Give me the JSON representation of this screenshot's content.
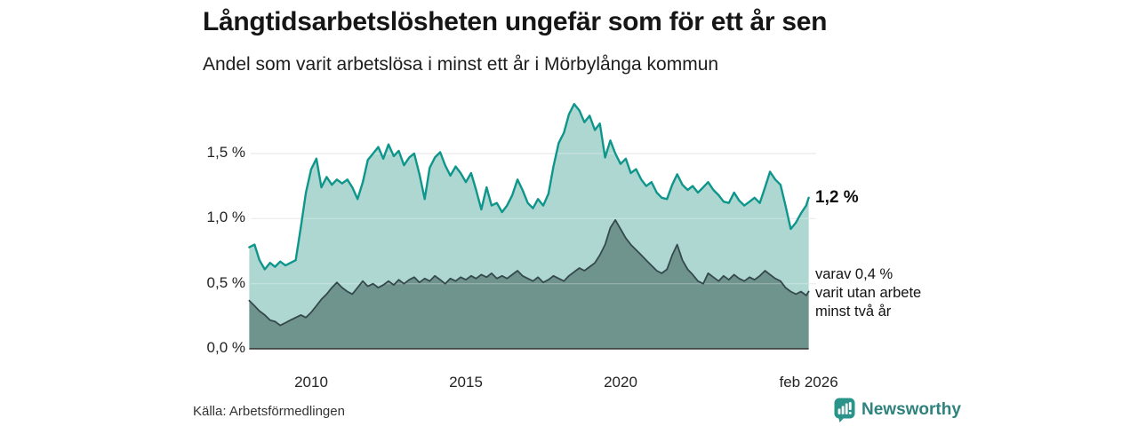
{
  "header": {
    "title": "Långtidsarbetslösheten ungefär som för ett år sen",
    "subtitle": "Andel som varit arbetslösa i minst ett år i Mörbylånga kommun"
  },
  "annotations": {
    "latest_total": "1,2 %",
    "lower_lines": [
      "varav 0,4 %",
      "varit utan arbete",
      "minst två år"
    ]
  },
  "footer": {
    "source": "Källa: Arbetsförmedlingen",
    "brand": "Newsworthy"
  },
  "colors": {
    "accent_teal": "#0f968c",
    "fill_teal": "#aed7d1",
    "dark_line": "#34494c",
    "dark_fill": "#6f938d",
    "grid": "#e2e4e8",
    "axis": "#303030",
    "brand_text": "#2f827e",
    "brand_icon": "#2a948b"
  },
  "chart_data": {
    "type": "area",
    "title": "Långtidsarbetslösheten ungefär som för ett år sen",
    "subtitle": "Andel som varit arbetslösa i minst ett år i Mörbylånga kommun",
    "xlabel": "",
    "ylabel": "",
    "x_unit": "decimal_year",
    "xlim": [
      2008,
      2026.08
    ],
    "ylim": [
      0,
      1.96
    ],
    "grid": true,
    "legend_position": "none",
    "y_ticks": [
      {
        "value": 0,
        "label": "0,0 %"
      },
      {
        "value": 0.5,
        "label": "0,5 %"
      },
      {
        "value": 1,
        "label": "1,0 %"
      },
      {
        "value": 1.5,
        "label": "1,5 %"
      }
    ],
    "x_ticks": [
      {
        "value": 2010,
        "label": "2010"
      },
      {
        "value": 2015,
        "label": "2015"
      },
      {
        "value": 2020,
        "label": "2020"
      },
      {
        "value": 2026.08,
        "label": "feb 2026"
      }
    ],
    "x": [
      2008,
      2008.17,
      2008.33,
      2008.5,
      2008.67,
      2008.83,
      2009,
      2009.17,
      2009.33,
      2009.5,
      2009.67,
      2009.83,
      2010,
      2010.17,
      2010.33,
      2010.5,
      2010.67,
      2010.83,
      2011,
      2011.17,
      2011.33,
      2011.5,
      2011.67,
      2011.83,
      2012,
      2012.17,
      2012.33,
      2012.5,
      2012.67,
      2012.83,
      2013,
      2013.17,
      2013.33,
      2013.5,
      2013.67,
      2013.83,
      2014,
      2014.17,
      2014.33,
      2014.5,
      2014.67,
      2014.83,
      2015,
      2015.17,
      2015.33,
      2015.5,
      2015.67,
      2015.83,
      2016,
      2016.17,
      2016.33,
      2016.5,
      2016.67,
      2016.83,
      2017,
      2017.17,
      2017.33,
      2017.5,
      2017.67,
      2017.83,
      2018,
      2018.17,
      2018.33,
      2018.5,
      2018.67,
      2018.83,
      2019,
      2019.17,
      2019.33,
      2019.5,
      2019.67,
      2019.83,
      2020,
      2020.17,
      2020.33,
      2020.5,
      2020.67,
      2020.83,
      2021,
      2021.17,
      2021.33,
      2021.5,
      2021.67,
      2021.83,
      2022,
      2022.17,
      2022.33,
      2022.5,
      2022.67,
      2022.83,
      2023,
      2023.17,
      2023.33,
      2023.5,
      2023.67,
      2023.83,
      2024,
      2024.17,
      2024.33,
      2024.5,
      2024.67,
      2024.83,
      2025,
      2025.17,
      2025.33,
      2025.5,
      2025.67,
      2025.83,
      2026,
      2026.08
    ],
    "series": [
      {
        "name": "Arbetslösa minst ett år",
        "color": "#0f968c",
        "fill": "#aed7d1",
        "latest_label": "1,2 %",
        "values": [
          0.78,
          0.8,
          0.68,
          0.61,
          0.66,
          0.63,
          0.67,
          0.64,
          0.66,
          0.68,
          0.94,
          1.2,
          1.38,
          1.46,
          1.24,
          1.32,
          1.26,
          1.3,
          1.27,
          1.3,
          1.24,
          1.15,
          1.28,
          1.45,
          1.5,
          1.55,
          1.46,
          1.57,
          1.48,
          1.52,
          1.41,
          1.47,
          1.5,
          1.34,
          1.15,
          1.39,
          1.47,
          1.51,
          1.41,
          1.33,
          1.4,
          1.35,
          1.28,
          1.35,
          1.22,
          1.07,
          1.24,
          1.1,
          1.12,
          1.05,
          1.1,
          1.18,
          1.3,
          1.22,
          1.12,
          1.08,
          1.15,
          1.1,
          1.19,
          1.4,
          1.58,
          1.66,
          1.8,
          1.88,
          1.83,
          1.74,
          1.79,
          1.68,
          1.73,
          1.47,
          1.6,
          1.5,
          1.42,
          1.46,
          1.35,
          1.38,
          1.3,
          1.25,
          1.28,
          1.2,
          1.16,
          1.15,
          1.26,
          1.34,
          1.26,
          1.22,
          1.25,
          1.2,
          1.24,
          1.28,
          1.22,
          1.18,
          1.13,
          1.12,
          1.2,
          1.14,
          1.1,
          1.13,
          1.16,
          1.12,
          1.24,
          1.36,
          1.3,
          1.26,
          1.1,
          0.92,
          0.97,
          1.04,
          1.1,
          1.16
        ]
      },
      {
        "name": "Arbetslösa minst två år",
        "color": "#34494c",
        "fill": "#6f938d",
        "latest_label": "varav 0,4 %",
        "values": [
          0.37,
          0.33,
          0.29,
          0.26,
          0.22,
          0.21,
          0.18,
          0.2,
          0.22,
          0.24,
          0.26,
          0.24,
          0.28,
          0.33,
          0.38,
          0.42,
          0.47,
          0.51,
          0.47,
          0.44,
          0.42,
          0.47,
          0.52,
          0.48,
          0.5,
          0.47,
          0.49,
          0.52,
          0.49,
          0.53,
          0.5,
          0.53,
          0.55,
          0.51,
          0.54,
          0.52,
          0.56,
          0.53,
          0.5,
          0.54,
          0.52,
          0.55,
          0.53,
          0.56,
          0.54,
          0.57,
          0.55,
          0.58,
          0.54,
          0.56,
          0.54,
          0.57,
          0.6,
          0.56,
          0.54,
          0.52,
          0.55,
          0.51,
          0.53,
          0.56,
          0.54,
          0.52,
          0.56,
          0.59,
          0.62,
          0.6,
          0.63,
          0.66,
          0.72,
          0.8,
          0.93,
          0.99,
          0.92,
          0.85,
          0.8,
          0.76,
          0.72,
          0.68,
          0.64,
          0.6,
          0.58,
          0.61,
          0.72,
          0.8,
          0.68,
          0.61,
          0.57,
          0.52,
          0.5,
          0.58,
          0.55,
          0.52,
          0.56,
          0.53,
          0.57,
          0.54,
          0.52,
          0.55,
          0.53,
          0.56,
          0.6,
          0.57,
          0.54,
          0.52,
          0.47,
          0.44,
          0.42,
          0.44,
          0.41,
          0.44
        ]
      }
    ]
  }
}
